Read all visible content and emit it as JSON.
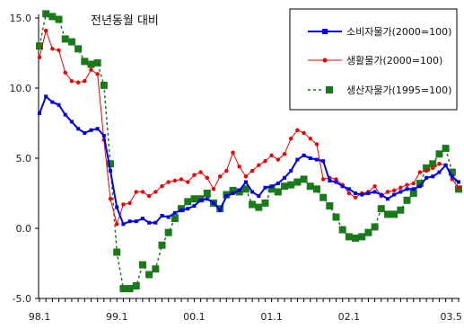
{
  "chart_data": {
    "type": "line",
    "title": "전년동월 대비",
    "xlabel": "",
    "ylabel": "",
    "ylim": [
      -5.0,
      15.0
    ],
    "y_ticks": [
      "15.0",
      "10.0",
      "5.0",
      "0.0",
      "-5.0"
    ],
    "y_tick_values": [
      15,
      10,
      5,
      0,
      -5
    ],
    "x_ticks": [
      "98.1",
      "99.1",
      "00.1",
      "01.1",
      "02.1",
      "03.5"
    ],
    "x_tick_index": [
      0,
      12,
      24,
      36,
      48,
      64
    ],
    "x_start": "1998-01",
    "x_end": "2003-05",
    "grid": false,
    "legend_position": "top-right",
    "series": [
      {
        "name": "소비자물가(2000=100)",
        "color": "#0000ee",
        "marker": "square-line",
        "values": [
          8.2,
          9.4,
          9.0,
          8.8,
          8.1,
          7.6,
          7.1,
          6.8,
          7.0,
          7.1,
          6.6,
          4.1,
          1.5,
          0.3,
          0.5,
          0.5,
          0.7,
          0.4,
          0.4,
          0.9,
          0.8,
          1.1,
          1.3,
          1.4,
          1.6,
          2.0,
          2.1,
          1.8,
          1.3,
          2.3,
          2.5,
          2.7,
          3.3,
          2.6,
          2.3,
          2.9,
          3.0,
          3.2,
          3.6,
          4.1,
          4.9,
          5.2,
          5.0,
          4.9,
          4.8,
          3.4,
          3.3,
          3.0,
          2.8,
          2.5,
          2.4,
          2.5,
          2.6,
          2.4,
          2.1,
          2.4,
          2.6,
          2.8,
          2.8,
          3.0,
          3.6,
          3.7,
          4.0,
          4.5,
          3.7,
          3.3
        ]
      },
      {
        "name": "생활물가(2000=100)",
        "color": "#ee0000",
        "marker": "dot-line",
        "values": [
          12.2,
          14.1,
          12.8,
          12.7,
          11.1,
          10.5,
          10.4,
          10.5,
          11.3,
          11.0,
          6.3,
          2.1,
          0.3,
          1.7,
          1.8,
          2.6,
          2.6,
          2.3,
          2.6,
          3.0,
          3.3,
          3.4,
          3.5,
          3.3,
          3.8,
          4.0,
          3.6,
          2.8,
          3.7,
          4.1,
          5.4,
          4.4,
          3.7,
          4.1,
          4.5,
          4.8,
          5.2,
          4.9,
          5.3,
          6.4,
          7.0,
          6.8,
          6.4,
          6.0,
          3.5,
          3.6,
          3.5,
          3.1,
          2.5,
          2.2,
          2.5,
          2.6,
          3.0,
          2.3,
          2.6,
          2.7,
          2.9,
          3.1,
          3.2,
          4.0,
          4.1,
          4.3,
          4.6,
          4.5,
          3.5,
          2.9
        ]
      },
      {
        "name": "생산자물가(1995=100)",
        "color": "#1a7a1a",
        "marker": "square-dashed",
        "values": [
          13.0,
          15.3,
          15.1,
          14.9,
          13.5,
          13.3,
          12.8,
          11.9,
          11.7,
          11.8,
          10.2,
          4.6,
          -1.7,
          -4.3,
          -4.3,
          -4.1,
          -2.6,
          -3.3,
          -2.9,
          -1.2,
          -0.3,
          0.7,
          1.4,
          1.9,
          2.1,
          2.1,
          2.5,
          1.8,
          1.4,
          2.4,
          2.7,
          2.6,
          2.8,
          1.7,
          1.5,
          1.8,
          2.8,
          2.6,
          3.0,
          3.1,
          3.3,
          3.5,
          3.0,
          2.8,
          2.2,
          1.6,
          0.8,
          -0.1,
          -0.6,
          -0.7,
          -0.6,
          -0.3,
          0.1,
          1.4,
          1.0,
          1.0,
          1.3,
          2.0,
          2.5,
          3.2,
          4.3,
          4.6,
          5.3,
          5.7,
          4.0,
          2.8
        ]
      }
    ]
  }
}
